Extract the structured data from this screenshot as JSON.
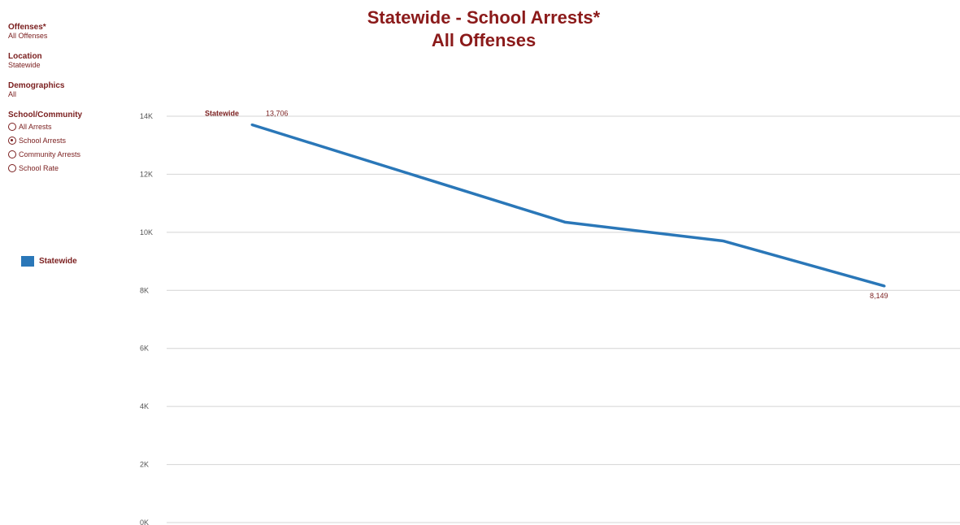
{
  "sidebar": {
    "offenses": {
      "label": "Offenses*",
      "value": "All Offenses"
    },
    "location": {
      "label": "Location",
      "value": "Statewide"
    },
    "demographics": {
      "label": "Demographics",
      "value": "All"
    },
    "school_community": {
      "label": "School/Community",
      "options": [
        {
          "label": "All Arrests",
          "selected": false
        },
        {
          "label": "School Arrests",
          "selected": true
        },
        {
          "label": "Community Arrests",
          "selected": false
        },
        {
          "label": "School Rate",
          "selected": false
        }
      ]
    }
  },
  "legend": {
    "label": "Statewide",
    "color": "#2a77b8"
  },
  "chart_data": {
    "type": "line",
    "title": "Statewide - School Arrests*",
    "subtitle": "All Offenses",
    "xlabel": "",
    "ylabel": "",
    "y_ticks": [
      "0K",
      "2K",
      "4K",
      "6K",
      "8K",
      "10K",
      "12K",
      "14K"
    ],
    "ylim": [
      0,
      14000
    ],
    "grid": true,
    "series": [
      {
        "name": "Statewide",
        "color": "#2a77b8",
        "values": [
          13706,
          10350,
          9700,
          8149
        ],
        "labels": [
          "13,706",
          "",
          "",
          "8,149"
        ]
      }
    ]
  }
}
